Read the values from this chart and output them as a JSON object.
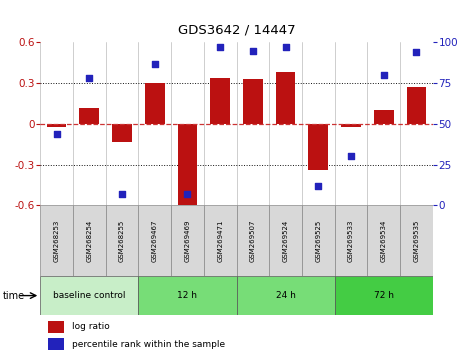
{
  "title": "GDS3642 / 14447",
  "samples": [
    "GSM268253",
    "GSM268254",
    "GSM268255",
    "GSM269467",
    "GSM269469",
    "GSM269471",
    "GSM269507",
    "GSM269524",
    "GSM269525",
    "GSM269533",
    "GSM269534",
    "GSM269535"
  ],
  "log_ratio": [
    -0.02,
    0.12,
    -0.13,
    0.3,
    -0.61,
    0.34,
    0.33,
    0.38,
    -0.34,
    -0.02,
    0.1,
    0.27
  ],
  "percentile_rank": [
    44,
    78,
    7,
    87,
    7,
    97,
    95,
    97,
    12,
    30,
    80,
    94
  ],
  "bar_color": "#bb1111",
  "dot_color": "#2222bb",
  "ylim_left": [
    -0.6,
    0.6
  ],
  "ylim_right": [
    0,
    100
  ],
  "yticks_left": [
    -0.6,
    -0.3,
    0.0,
    0.3,
    0.6
  ],
  "yticks_right": [
    0,
    25,
    50,
    75,
    100
  ],
  "hline_color": "#cc3333",
  "dotted_color": "#111111",
  "groups": [
    {
      "label": "baseline control",
      "start": 0,
      "end": 3,
      "color": "#c8eec8"
    },
    {
      "label": "12 h",
      "start": 3,
      "end": 6,
      "color": "#77dd77"
    },
    {
      "label": "24 h",
      "start": 6,
      "end": 9,
      "color": "#77dd77"
    },
    {
      "label": "72 h",
      "start": 9,
      "end": 12,
      "color": "#44cc44"
    }
  ],
  "time_label": "time",
  "legend_log_ratio": "log ratio",
  "legend_percentile": "percentile rank within the sample",
  "plot_bg_color": "#ffffff",
  "sample_box_color": "#d8d8d8",
  "sample_box_edge": "#888888"
}
